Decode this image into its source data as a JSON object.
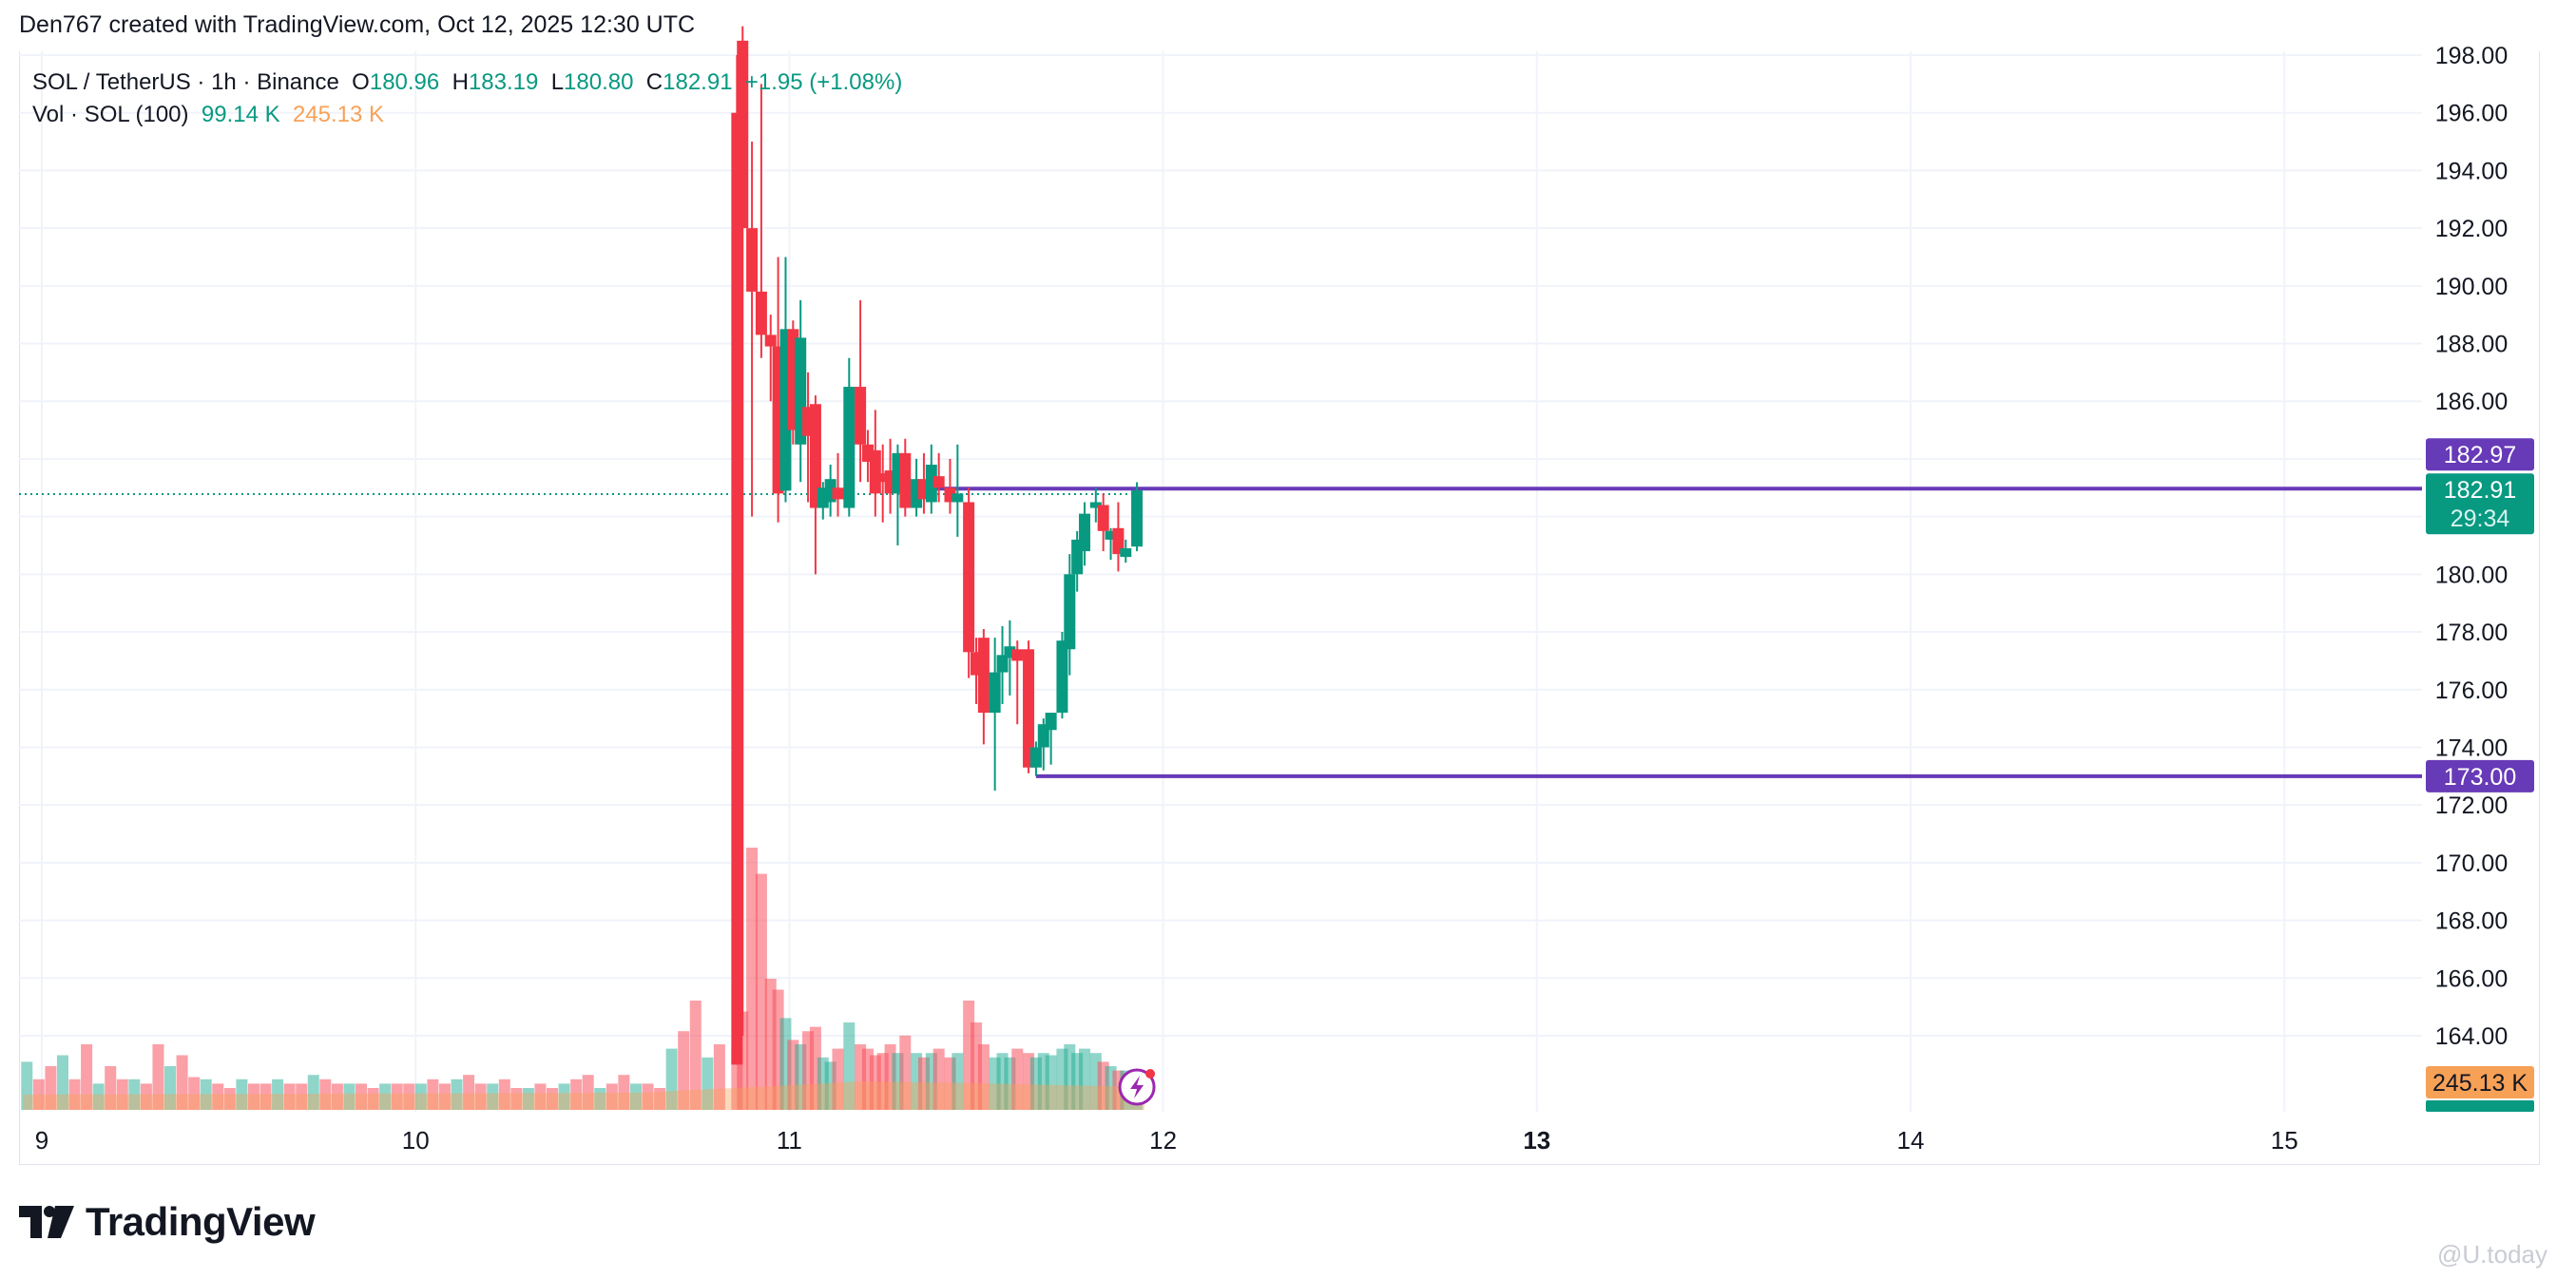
{
  "caption": "Den767 created with TradingView.com, Oct 12, 2025 12:30 UTC",
  "legend": {
    "symbol": "SOL / TetherUS · 1h · Binance",
    "o_label": "O",
    "o_value": "180.96",
    "h_label": "H",
    "h_value": "183.19",
    "l_label": "L",
    "l_value": "180.80",
    "c_label": "C",
    "c_value": "182.91",
    "change": "+1.95 (+1.08%)",
    "vol_label": "Vol · SOL (100)",
    "vol_value": "99.14 K",
    "vol_ma": "245.13 K"
  },
  "brand": {
    "name": "TradingView"
  },
  "watermark": "@U.today",
  "colors": {
    "up": "#089981",
    "down": "#f23645",
    "level": "#673ab7",
    "vol_ma": "#f7a157",
    "grid": "#f0f3fa"
  },
  "chart_data": {
    "type": "candlestick",
    "title": "SOL / TetherUS · 1h · Binance",
    "ylim": [
      163,
      198
    ],
    "y_ticks": [
      "164.00",
      "166.00",
      "168.00",
      "170.00",
      "172.00",
      "174.00",
      "176.00",
      "178.00",
      "180.00",
      "182.00",
      "184.00",
      "186.00",
      "188.00",
      "190.00",
      "192.00",
      "194.00",
      "196.00",
      "198.00"
    ],
    "x_ticks": [
      {
        "label": "9",
        "bold": false,
        "day": 9
      },
      {
        "label": "10",
        "bold": false,
        "day": 10
      },
      {
        "label": "11",
        "bold": false,
        "day": 11
      },
      {
        "label": "12",
        "bold": false,
        "day": 12
      },
      {
        "label": "13",
        "bold": true,
        "day": 13
      },
      {
        "label": "14",
        "bold": false,
        "day": 14
      },
      {
        "label": "15",
        "bold": false,
        "day": 15
      }
    ],
    "candles": [
      {
        "t": 10.86,
        "o": 196,
        "h": 198,
        "l": 163,
        "c": 163
      },
      {
        "t": 10.875,
        "o": 198.5,
        "h": 199,
        "l": 164,
        "c": 192
      },
      {
        "t": 10.9,
        "o": 192,
        "h": 195,
        "l": 182,
        "c": 189.8
      },
      {
        "t": 10.925,
        "o": 189.8,
        "h": 197,
        "l": 187.5,
        "c": 188.3
      },
      {
        "t": 10.95,
        "o": 188.3,
        "h": 189,
        "l": 186,
        "c": 187.9
      },
      {
        "t": 10.97,
        "o": 187.9,
        "h": 191,
        "l": 181.8,
        "c": 182.8
      },
      {
        "t": 10.99,
        "o": 182.9,
        "h": 191,
        "l": 182.5,
        "c": 188.5
      },
      {
        "t": 11.01,
        "o": 188.5,
        "h": 188.8,
        "l": 184.5,
        "c": 185
      },
      {
        "t": 11.03,
        "o": 184.5,
        "h": 189.5,
        "l": 183.2,
        "c": 188.2
      },
      {
        "t": 11.05,
        "o": 185.8,
        "h": 187,
        "l": 182.5,
        "c": 184.8
      },
      {
        "t": 11.07,
        "o": 185.9,
        "h": 186.2,
        "l": 180,
        "c": 182.3
      },
      {
        "t": 11.09,
        "o": 182.3,
        "h": 183.2,
        "l": 181.9,
        "c": 183
      },
      {
        "t": 11.11,
        "o": 182.5,
        "h": 183.8,
        "l": 182,
        "c": 183.3
      },
      {
        "t": 11.13,
        "o": 183,
        "h": 184.2,
        "l": 182,
        "c": 182.6
      },
      {
        "t": 11.16,
        "o": 182.3,
        "h": 187.5,
        "l": 182,
        "c": 186.5
      },
      {
        "t": 11.19,
        "o": 186.5,
        "h": 189.5,
        "l": 183.2,
        "c": 184.5
      },
      {
        "t": 11.21,
        "o": 184.5,
        "h": 185,
        "l": 183.2,
        "c": 183.9
      },
      {
        "t": 11.23,
        "o": 184.3,
        "h": 185.7,
        "l": 182,
        "c": 182.8
      },
      {
        "t": 11.25,
        "o": 183.5,
        "h": 184.5,
        "l": 181.8,
        "c": 183.2
      },
      {
        "t": 11.27,
        "o": 183.6,
        "h": 184.7,
        "l": 182.1,
        "c": 182.8
      },
      {
        "t": 11.29,
        "o": 182.8,
        "h": 184.5,
        "l": 181,
        "c": 184.2
      },
      {
        "t": 11.31,
        "o": 184.2,
        "h": 184.7,
        "l": 182,
        "c": 182.3
      },
      {
        "t": 11.34,
        "o": 182.3,
        "h": 184,
        "l": 182,
        "c": 183.3
      },
      {
        "t": 11.36,
        "o": 183.3,
        "h": 184.2,
        "l": 182.1,
        "c": 182.6
      },
      {
        "t": 11.38,
        "o": 182.5,
        "h": 184.5,
        "l": 182.1,
        "c": 183.8
      },
      {
        "t": 11.4,
        "o": 183.4,
        "h": 184.2,
        "l": 182.5,
        "c": 183
      },
      {
        "t": 11.43,
        "o": 183,
        "h": 184,
        "l": 182.1,
        "c": 182.5
      },
      {
        "t": 11.45,
        "o": 182.5,
        "h": 184.5,
        "l": 181.3,
        "c": 182.8
      },
      {
        "t": 11.48,
        "o": 182.5,
        "h": 183,
        "l": 176.4,
        "c": 177.3
      },
      {
        "t": 11.5,
        "o": 177.3,
        "h": 177.8,
        "l": 175.5,
        "c": 176.5
      },
      {
        "t": 11.52,
        "o": 177.8,
        "h": 178.1,
        "l": 174.1,
        "c": 175.2
      },
      {
        "t": 11.55,
        "o": 175.2,
        "h": 177.8,
        "l": 172.5,
        "c": 176.6
      },
      {
        "t": 11.57,
        "o": 176.6,
        "h": 178.2,
        "l": 175.5,
        "c": 177.2
      },
      {
        "t": 11.59,
        "o": 177.1,
        "h": 178.4,
        "l": 175.8,
        "c": 177.5
      },
      {
        "t": 11.61,
        "o": 177.4,
        "h": 177.7,
        "l": 174.8,
        "c": 177
      },
      {
        "t": 11.64,
        "o": 177.4,
        "h": 177.7,
        "l": 173.1,
        "c": 173.3
      },
      {
        "t": 11.66,
        "o": 173.3,
        "h": 174.2,
        "l": 173,
        "c": 174
      },
      {
        "t": 11.68,
        "o": 174,
        "h": 175,
        "l": 173.2,
        "c": 174.8
      },
      {
        "t": 11.7,
        "o": 174.6,
        "h": 175.2,
        "l": 173.4,
        "c": 175.2
      },
      {
        "t": 11.73,
        "o": 175.2,
        "h": 178,
        "l": 175,
        "c": 177.7
      },
      {
        "t": 11.75,
        "o": 177.4,
        "h": 180.7,
        "l": 176.5,
        "c": 180
      },
      {
        "t": 11.77,
        "o": 180,
        "h": 181.5,
        "l": 179.4,
        "c": 181.2
      },
      {
        "t": 11.79,
        "o": 180.8,
        "h": 182.5,
        "l": 180.3,
        "c": 182.1
      },
      {
        "t": 11.82,
        "o": 182.3,
        "h": 183,
        "l": 181.8,
        "c": 182.5
      },
      {
        "t": 11.84,
        "o": 182.4,
        "h": 182.8,
        "l": 180.8,
        "c": 181.5
      },
      {
        "t": 11.86,
        "o": 181.2,
        "h": 181.6,
        "l": 180.5,
        "c": 181.5
      },
      {
        "t": 11.88,
        "o": 181.6,
        "h": 182.5,
        "l": 180.1,
        "c": 180.7
      },
      {
        "t": 11.9,
        "o": 180.6,
        "h": 181.2,
        "l": 180.4,
        "c": 180.9
      },
      {
        "t": 11.93,
        "o": 180.96,
        "h": 183.19,
        "l": 180.8,
        "c": 182.91
      }
    ],
    "volume": [
      28,
      45,
      120,
      108,
      60,
      55,
      42,
      32,
      30,
      36,
      38,
      24,
      22,
      28,
      40,
      30,
      28,
      25,
      26,
      30,
      26,
      34,
      26,
      24,
      26,
      28,
      24,
      26,
      50,
      40,
      30,
      24,
      26,
      24,
      28,
      26,
      24,
      26,
      25,
      28,
      30,
      26,
      28,
      26,
      22,
      20,
      18,
      18,
      12
    ],
    "volume_early": [
      22,
      14,
      20,
      25,
      14,
      30,
      12,
      20,
      14,
      14,
      12,
      30,
      20,
      25,
      15,
      14,
      12,
      10,
      14,
      12,
      12,
      14,
      12,
      12,
      16,
      14,
      12,
      12,
      12,
      10,
      12,
      12,
      12,
      12,
      14,
      12,
      14,
      16,
      12,
      12,
      14,
      10,
      10,
      12,
      10,
      12,
      14,
      16,
      10,
      12,
      16,
      12,
      12,
      10,
      28,
      36,
      50,
      24,
      30
    ],
    "levels": [
      {
        "label": "182.97",
        "value": 182.97,
        "start": 11.29
      },
      {
        "label": "173.00",
        "value": 173.0,
        "start": 11.66
      }
    ],
    "last_price": {
      "label": "182.91",
      "value": 182.91,
      "countdown": "29:34"
    },
    "vol_ma_label": "245.13 K",
    "vol_label": "99.14 K"
  }
}
